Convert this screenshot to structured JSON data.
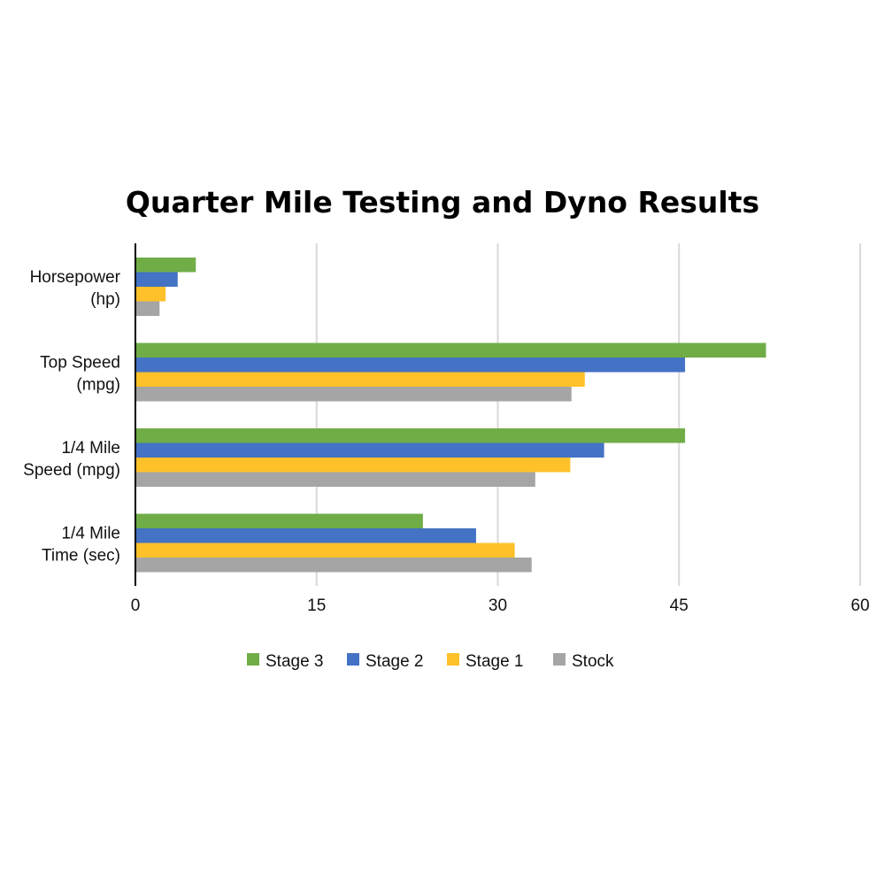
{
  "chart_data": {
    "type": "bar",
    "orientation": "horizontal",
    "title": "Quarter Mile Testing and Dyno Results",
    "categories": [
      [
        "Horsepower",
        "(hp)"
      ],
      [
        "Top Speed",
        "(mpg)"
      ],
      [
        "1/4 Mile",
        "Speed (mpg)"
      ],
      [
        "1/4 Mile",
        "Time (sec)"
      ]
    ],
    "series": [
      {
        "name": "Stage 3",
        "color": "#70ad47",
        "values": [
          5.0,
          52.2,
          45.5,
          23.8
        ]
      },
      {
        "name": "Stage 2",
        "color": "#4472c4",
        "values": [
          3.5,
          45.5,
          38.8,
          28.2
        ]
      },
      {
        "name": "Stage 1",
        "color": "#ffc12a",
        "values": [
          2.5,
          37.2,
          36.0,
          31.4
        ]
      },
      {
        "name": "Stock",
        "color": "#a5a5a5",
        "values": [
          2.0,
          36.1,
          33.1,
          32.8
        ]
      }
    ],
    "xlim": [
      0,
      60
    ],
    "xticks": [
      "0",
      "15",
      "30",
      "45",
      "60"
    ],
    "grid": true,
    "legend": "bottom"
  }
}
